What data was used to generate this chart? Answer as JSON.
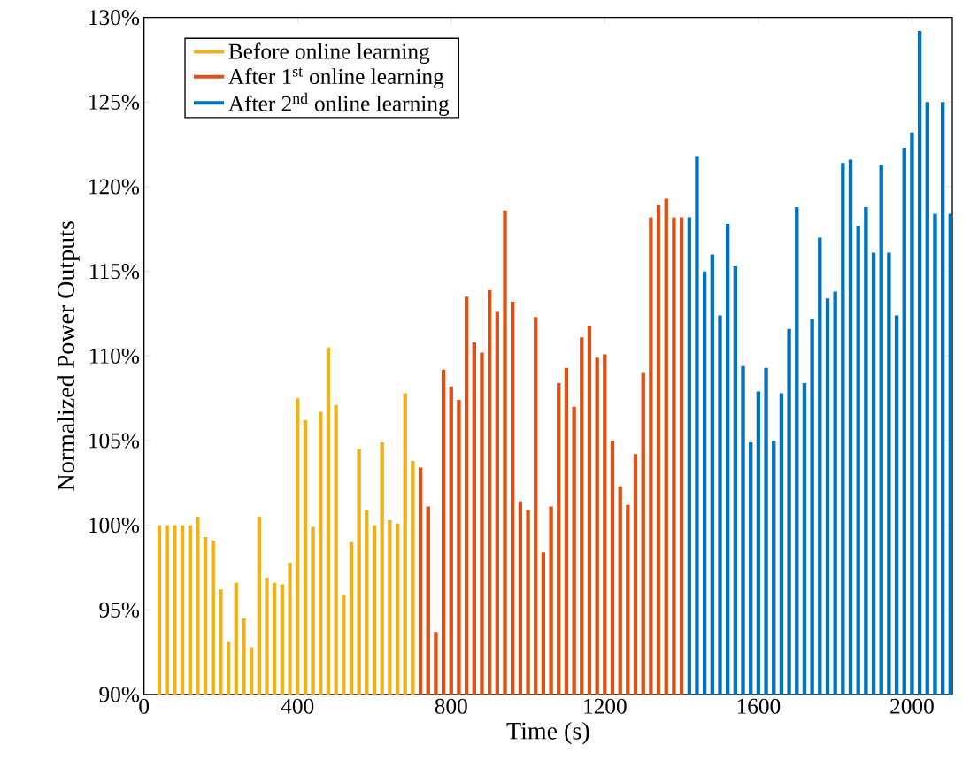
{
  "chart_data": {
    "type": "bar",
    "xlabel": "Time (s)",
    "ylabel": "Normalized Power Outputs",
    "xlim": [
      0,
      2105
    ],
    "xticks": [
      0,
      400,
      800,
      1200,
      1600,
      2000
    ],
    "ylim": [
      90,
      130
    ],
    "yticks": [
      {
        "value": 90,
        "label": "90%"
      },
      {
        "value": 95,
        "label": "95%"
      },
      {
        "value": 100,
        "label": "100%"
      },
      {
        "value": 105,
        "label": "105%"
      },
      {
        "value": 110,
        "label": "110%"
      },
      {
        "value": 115,
        "label": "115%"
      },
      {
        "value": 120,
        "label": "120%"
      },
      {
        "value": 125,
        "label": "125%"
      },
      {
        "value": 130,
        "label": "130%"
      }
    ],
    "legend": "top left",
    "grid": false,
    "series": [
      {
        "name": "Before online learning",
        "color": "#edb120",
        "x": [
          40,
          60,
          80,
          100,
          120,
          140,
          160,
          180,
          200,
          220,
          240,
          260,
          280,
          300,
          320,
          340,
          360,
          380,
          400,
          420,
          440,
          460,
          480,
          500,
          520,
          540,
          560,
          580,
          600,
          620,
          640,
          660,
          680,
          700
        ],
        "values": [
          100,
          100,
          100,
          100,
          100,
          100.5,
          99.3,
          99.1,
          96.2,
          93.1,
          96.6,
          94.5,
          92.8,
          100.5,
          96.9,
          96.6,
          96.5,
          97.8,
          107.5,
          106.2,
          99.9,
          106.7,
          110.5,
          107.1,
          95.9,
          99.0,
          104.5,
          100.9,
          100.0,
          104.9,
          100.3,
          100.1,
          107.8,
          103.8
        ]
      },
      {
        "name": "After 1$^{st}$ online learning",
        "color": "#d95319",
        "x": [
          720,
          740,
          760,
          780,
          800,
          820,
          840,
          860,
          880,
          900,
          920,
          940,
          960,
          980,
          1000,
          1020,
          1040,
          1060,
          1080,
          1100,
          1120,
          1140,
          1160,
          1180,
          1200,
          1220,
          1240,
          1260,
          1280,
          1300,
          1320,
          1340,
          1360,
          1380,
          1400
        ],
        "values": [
          103.4,
          101.1,
          93.7,
          109.2,
          108.2,
          107.4,
          113.5,
          110.8,
          110.2,
          113.9,
          112.6,
          118.6,
          113.2,
          101.4,
          100.9,
          112.3,
          98.4,
          101.1,
          108.4,
          109.3,
          107.0,
          111.1,
          111.8,
          109.9,
          110.1,
          105.0,
          102.3,
          101.2,
          104.2,
          109.0,
          118.2,
          118.9,
          119.3,
          118.2,
          118.2
        ]
      },
      {
        "name": "After 2$^{nd}$ online learning",
        "color": "#0072bd",
        "x": [
          1420,
          1440,
          1460,
          1480,
          1500,
          1520,
          1540,
          1560,
          1580,
          1600,
          1620,
          1640,
          1660,
          1680,
          1700,
          1720,
          1740,
          1760,
          1780,
          1800,
          1820,
          1840,
          1860,
          1880,
          1900,
          1920,
          1940,
          1960,
          1980,
          2000,
          2020,
          2040,
          2060,
          2080,
          2100
        ],
        "values": [
          118.2,
          121.8,
          115.0,
          116.0,
          112.4,
          117.8,
          115.3,
          109.4,
          104.9,
          107.9,
          109.3,
          105.0,
          107.8,
          111.6,
          118.8,
          108.4,
          112.2,
          117.0,
          113.4,
          113.8,
          121.4,
          121.6,
          117.7,
          118.8,
          116.1,
          121.3,
          116.1,
          112.4,
          122.3,
          123.2,
          129.2,
          125.0,
          118.4,
          125.0,
          118.4
        ]
      }
    ]
  }
}
